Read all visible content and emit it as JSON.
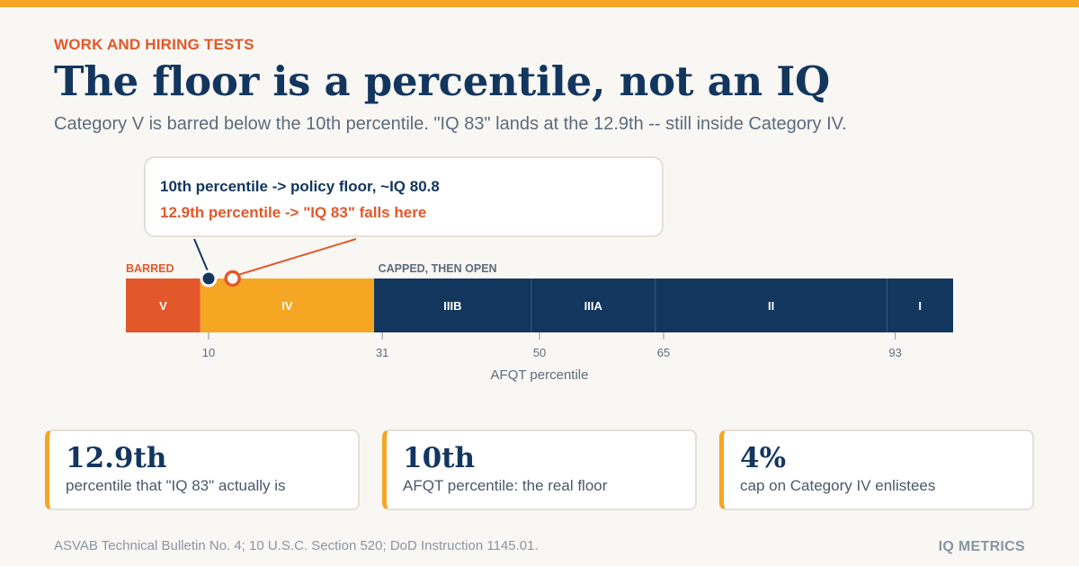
{
  "header": {
    "eyebrow": "WORK AND HIRING TESTS",
    "title": "The floor is a percentile, not an IQ",
    "subtitle": "Category V is barred below the 10th percentile. \"IQ 83\" lands at the 12.9th -- still inside Category IV."
  },
  "callout": {
    "line1": "10th percentile -> policy floor, ~IQ 80.8",
    "line2": "12.9th percentile -> \"IQ 83\" falls here"
  },
  "colors": {
    "accent": "#f5a623",
    "barred": "#e2582a",
    "open": "#13365f",
    "text_muted": "#5c6b7c"
  },
  "chart_data": {
    "type": "bar",
    "orientation": "horizontal-segmented",
    "xlabel": "AFQT percentile",
    "xlim": [
      0,
      100
    ],
    "segments": [
      {
        "label": "V",
        "start": 0,
        "end": 9,
        "group": "barred"
      },
      {
        "label": "IV",
        "start": 9,
        "end": 30,
        "group": "capped"
      },
      {
        "label": "IIIB",
        "start": 30,
        "end": 49,
        "group": "open"
      },
      {
        "label": "IIIA",
        "start": 49,
        "end": 64,
        "group": "open"
      },
      {
        "label": "II",
        "start": 64,
        "end": 92,
        "group": "open"
      },
      {
        "label": "I",
        "start": 92,
        "end": 100,
        "group": "open"
      }
    ],
    "ticks": [
      10,
      31,
      50,
      65,
      93
    ],
    "group_labels": [
      {
        "text": "BARRED",
        "at": 0
      },
      {
        "text": "CAPPED, THEN OPEN",
        "at": 30.5
      }
    ],
    "markers": [
      {
        "name": "policy-floor",
        "value": 10,
        "style": "filled"
      },
      {
        "name": "iq83",
        "value": 12.9,
        "style": "ring"
      }
    ]
  },
  "cards": [
    {
      "value": "12.9th",
      "label": "percentile that \"IQ 83\" actually is"
    },
    {
      "value": "10th",
      "label": "AFQT percentile: the real floor"
    },
    {
      "value": "4%",
      "label": "cap on Category IV enlistees"
    }
  ],
  "footer": {
    "source": "ASVAB Technical Bulletin No. 4; 10 U.S.C. Section 520; DoD Instruction 1145.01.",
    "brand": "IQ METRICS"
  }
}
